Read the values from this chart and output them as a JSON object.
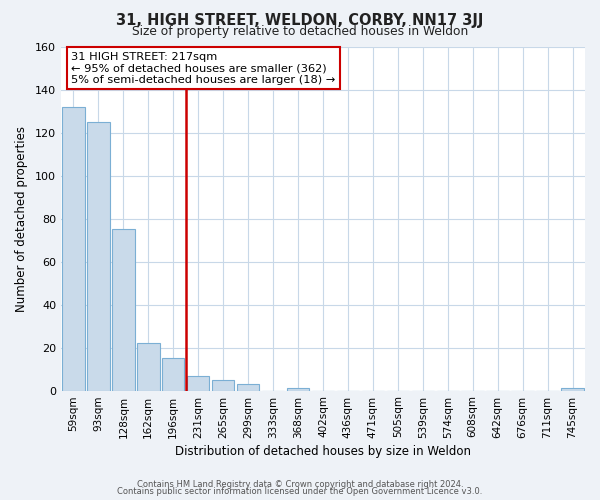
{
  "title": "31, HIGH STREET, WELDON, CORBY, NN17 3JJ",
  "subtitle": "Size of property relative to detached houses in Weldon",
  "xlabel": "Distribution of detached houses by size in Weldon",
  "ylabel": "Number of detached properties",
  "bar_labels": [
    "59sqm",
    "93sqm",
    "128sqm",
    "162sqm",
    "196sqm",
    "231sqm",
    "265sqm",
    "299sqm",
    "333sqm",
    "368sqm",
    "402sqm",
    "436sqm",
    "471sqm",
    "505sqm",
    "539sqm",
    "574sqm",
    "608sqm",
    "642sqm",
    "676sqm",
    "711sqm",
    "745sqm"
  ],
  "bar_values": [
    132,
    125,
    75,
    22,
    15,
    7,
    5,
    3,
    0,
    1,
    0,
    0,
    0,
    0,
    0,
    0,
    0,
    0,
    0,
    0,
    1
  ],
  "bar_color": "#c9daea",
  "bar_edge_color": "#7bafd4",
  "vline_x_idx": 4.5,
  "vline_color": "#cc0000",
  "annotation_line1": "31 HIGH STREET: 217sqm",
  "annotation_line2": "← 95% of detached houses are smaller (362)",
  "annotation_line3": "5% of semi-detached houses are larger (18) →",
  "annotation_box_color": "#ffffff",
  "annotation_box_edge": "#cc0000",
  "ylim": [
    0,
    160
  ],
  "yticks": [
    0,
    20,
    40,
    60,
    80,
    100,
    120,
    140,
    160
  ],
  "footer_line1": "Contains HM Land Registry data © Crown copyright and database right 2024.",
  "footer_line2": "Contains public sector information licensed under the Open Government Licence v3.0.",
  "bg_color": "#eef2f7",
  "plot_bg_color": "#ffffff",
  "grid_color": "#c8d8e8"
}
